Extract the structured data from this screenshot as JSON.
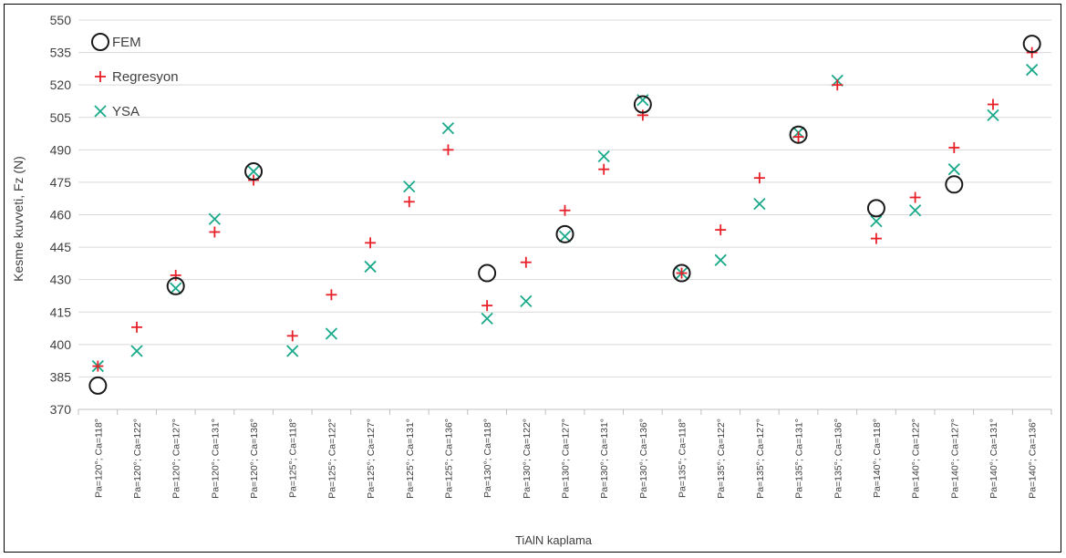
{
  "chart_data": {
    "type": "scatter",
    "xlabel": "TiAlN kaplama",
    "ylabel": "Kesme kuvveti, Fz (N)",
    "ylim": [
      370,
      550
    ],
    "yticks": [
      370,
      385,
      400,
      415,
      430,
      445,
      460,
      475,
      490,
      505,
      520,
      535,
      550
    ],
    "grid": "horizontal",
    "legend_position": "top-left",
    "categories": [
      "Pa=120°; Ca=118°",
      "Pa=120°; Ca=122°",
      "Pa=120°; Ca=127°",
      "Pa=120°; Ca=131°",
      "Pa=120°; Ca=136°",
      "Pa=125°; Ca=118°",
      "Pa=125°; Ca=122°",
      "Pa=125°; Ca=127°",
      "Pa=125°; Ca=131°",
      "Pa=125°; Ca=136°",
      "Pa=130°; Ca=118°",
      "Pa=130°; Ca=122°",
      "Pa=130°; Ca=127°",
      "Pa=130°; Ca=131°",
      "Pa=130°; Ca=136°",
      "Pa=135°; Ca=118°",
      "Pa=135°; Ca=122°",
      "Pa=135°; Ca=127°",
      "Pa=135°; Ca=131°",
      "Pa=135°; Ca=136°",
      "Pa=140°; Ca=118°",
      "Pa=140°; Ca=122°",
      "Pa=140°; Ca=127°",
      "Pa=140°; Ca=131°",
      "Pa=140°; Ca=136°"
    ],
    "series": [
      {
        "name": "FEM",
        "marker": "circle",
        "color": "#1a1a1a",
        "values": [
          381,
          null,
          427,
          null,
          480,
          null,
          null,
          null,
          null,
          null,
          433,
          null,
          451,
          null,
          511,
          433,
          null,
          null,
          497,
          null,
          463,
          null,
          474,
          null,
          539
        ]
      },
      {
        "name": "Regresyon",
        "marker": "plus",
        "color": "#e8202a",
        "values": [
          390,
          408,
          432,
          452,
          476,
          404,
          423,
          447,
          466,
          490,
          418,
          438,
          462,
          481,
          506,
          433,
          453,
          477,
          496,
          520,
          449,
          468,
          491,
          511,
          535
        ]
      },
      {
        "name": "YSA",
        "marker": "x",
        "color": "#1aa98a",
        "values": [
          390,
          397,
          426,
          458,
          480,
          397,
          405,
          436,
          473,
          500,
          412,
          420,
          450,
          487,
          513,
          433,
          439,
          465,
          498,
          522,
          457,
          462,
          481,
          506,
          527
        ]
      }
    ]
  }
}
